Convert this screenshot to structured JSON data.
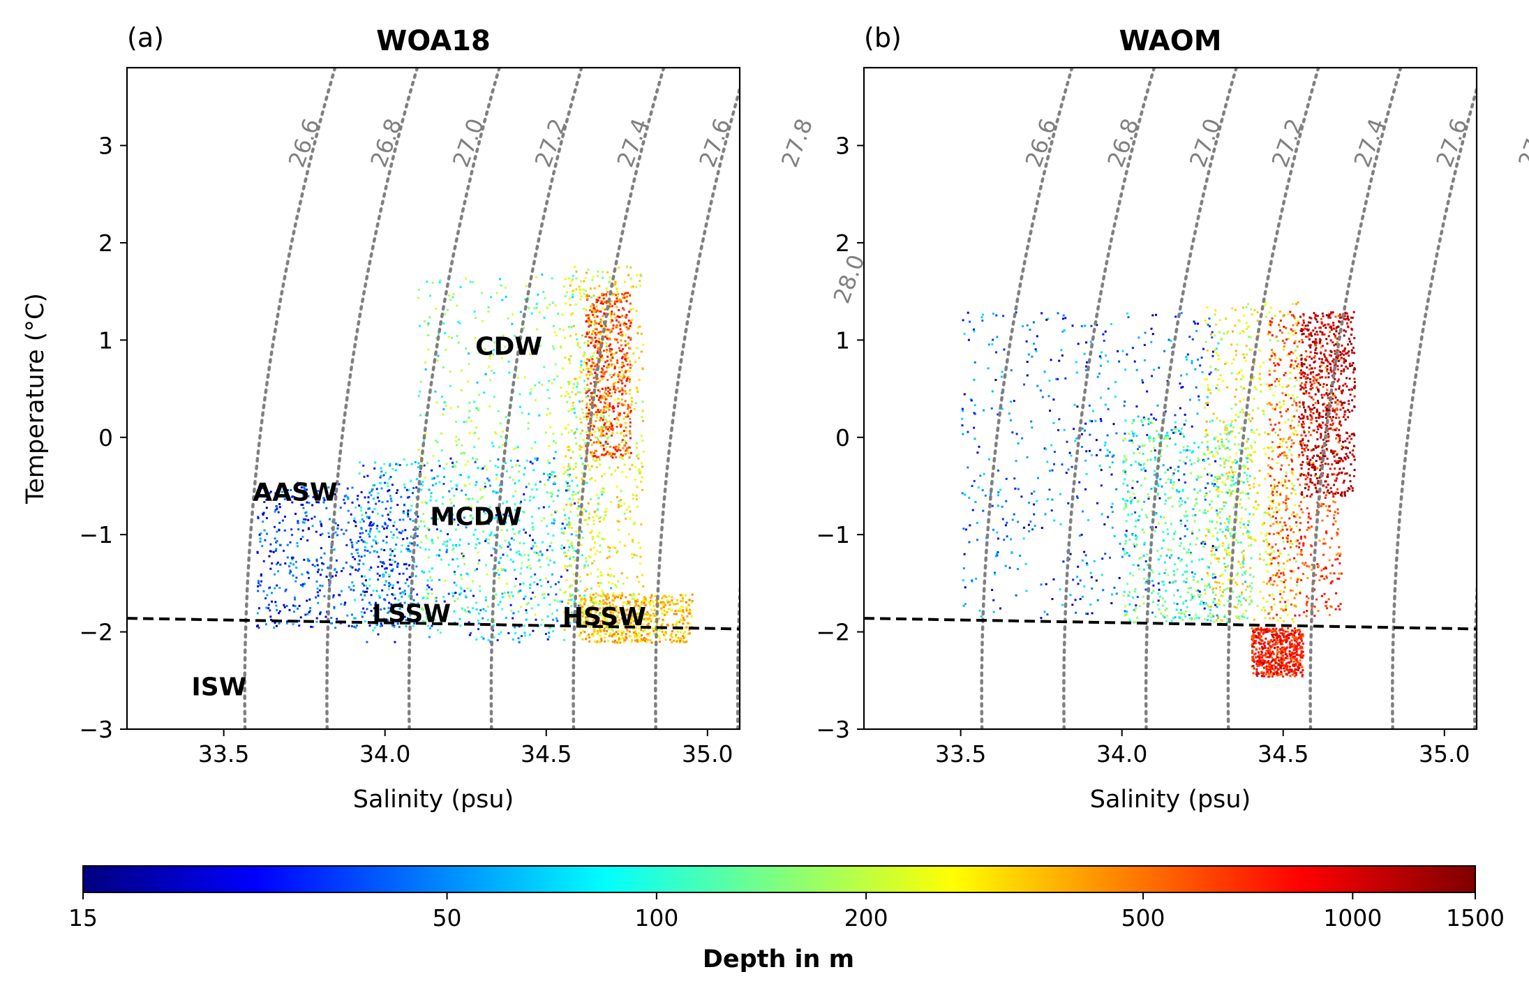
{
  "chart_data": [
    {
      "type": "scatter",
      "panel_label": "(a)",
      "title": "WOA18",
      "xlabel": "Salinity (psu)",
      "ylabel": "Temperature (°C)",
      "xlim": [
        33.2,
        35.1
      ],
      "ylim": [
        -3.0,
        3.8
      ],
      "xticks": [
        33.5,
        34.0,
        34.5,
        35.0
      ],
      "yticks": [
        -3,
        -2,
        -1,
        0,
        1,
        2,
        3
      ],
      "color_by": "depth",
      "freezing_line": {
        "style": "dashed",
        "color": "#000000",
        "points": [
          [
            33.2,
            -1.86
          ],
          [
            35.1,
            -1.97
          ]
        ]
      },
      "point_clouds": [
        {
          "s_min": 33.6,
          "s_max": 34.1,
          "t_min": -1.95,
          "t_max": -0.45,
          "depth_min": 15,
          "depth_max": 60
        },
        {
          "s_min": 33.9,
          "s_max": 34.6,
          "t_min": -2.1,
          "t_max": -0.2,
          "depth_min": 20,
          "depth_max": 120
        },
        {
          "s_min": 34.1,
          "s_max": 34.7,
          "t_min": -1.9,
          "t_max": 1.7,
          "depth_min": 60,
          "depth_max": 250
        },
        {
          "s_min": 34.55,
          "s_max": 34.8,
          "t_min": -2.05,
          "t_max": 1.8,
          "depth_min": 150,
          "depth_max": 400
        },
        {
          "s_min": 34.62,
          "s_max": 34.76,
          "t_min": -0.2,
          "t_max": 1.5,
          "depth_min": 300,
          "depth_max": 900
        },
        {
          "s_min": 34.6,
          "s_max": 34.95,
          "t_min": -2.1,
          "t_max": -1.6,
          "depth_min": 200,
          "depth_max": 500
        }
      ],
      "annotations": [
        {
          "text": "CDW",
          "s": 34.28,
          "t": 0.95
        },
        {
          "text": "AASW",
          "s": 33.59,
          "t": -0.55
        },
        {
          "text": "MCDW",
          "s": 34.14,
          "t": -0.8
        },
        {
          "text": "LSSW",
          "s": 33.96,
          "t": -1.8
        },
        {
          "text": "HSSW",
          "s": 34.55,
          "t": -1.83
        },
        {
          "text": "ISW",
          "s": 33.4,
          "t": -2.55
        }
      ]
    },
    {
      "type": "scatter",
      "panel_label": "(b)",
      "title": "WAOM",
      "xlabel": "Salinity (psu)",
      "ylabel": "",
      "xlim": [
        33.2,
        35.1
      ],
      "ylim": [
        -3.0,
        3.8
      ],
      "xticks": [
        33.5,
        34.0,
        34.5,
        35.0
      ],
      "yticks": [
        -3,
        -2,
        -1,
        0,
        1,
        2,
        3
      ],
      "color_by": "depth",
      "freezing_line": {
        "style": "dashed",
        "color": "#000000",
        "points": [
          [
            33.2,
            -1.86
          ],
          [
            35.1,
            -1.97
          ]
        ]
      },
      "point_clouds": [
        {
          "s_min": 33.5,
          "s_max": 34.3,
          "t_min": -1.85,
          "t_max": 1.3,
          "depth_min": 15,
          "depth_max": 80
        },
        {
          "s_min": 34.0,
          "s_max": 34.4,
          "t_min": -1.9,
          "t_max": 0.2,
          "depth_min": 60,
          "depth_max": 200
        },
        {
          "s_min": 34.25,
          "s_max": 34.55,
          "t_min": -1.9,
          "t_max": 1.4,
          "depth_min": 150,
          "depth_max": 400
        },
        {
          "s_min": 34.45,
          "s_max": 34.68,
          "t_min": -1.85,
          "t_max": 1.3,
          "depth_min": 400,
          "depth_max": 900
        },
        {
          "s_min": 34.55,
          "s_max": 34.72,
          "t_min": -0.6,
          "t_max": 1.3,
          "depth_min": 900,
          "depth_max": 1500
        },
        {
          "s_min": 34.4,
          "s_max": 34.56,
          "t_min": -2.45,
          "t_max": -1.95,
          "depth_min": 500,
          "depth_max": 1100
        }
      ],
      "annotations": []
    }
  ],
  "isopycnals": {
    "color": "#808080",
    "style": "dotted",
    "labels": [
      "26.6",
      "26.8",
      "27.0",
      "27.2",
      "27.4",
      "27.6",
      "27.8",
      "28.0"
    ]
  },
  "colorbar": {
    "label": "Depth in m",
    "ticks": [
      15,
      50,
      100,
      200,
      500,
      1000,
      1500
    ],
    "colormap": "jet",
    "stops": [
      "#00007f",
      "#0000ff",
      "#007fff",
      "#00ffff",
      "#7fff7f",
      "#ffff00",
      "#ff7f00",
      "#ff0000",
      "#7f0000"
    ]
  }
}
